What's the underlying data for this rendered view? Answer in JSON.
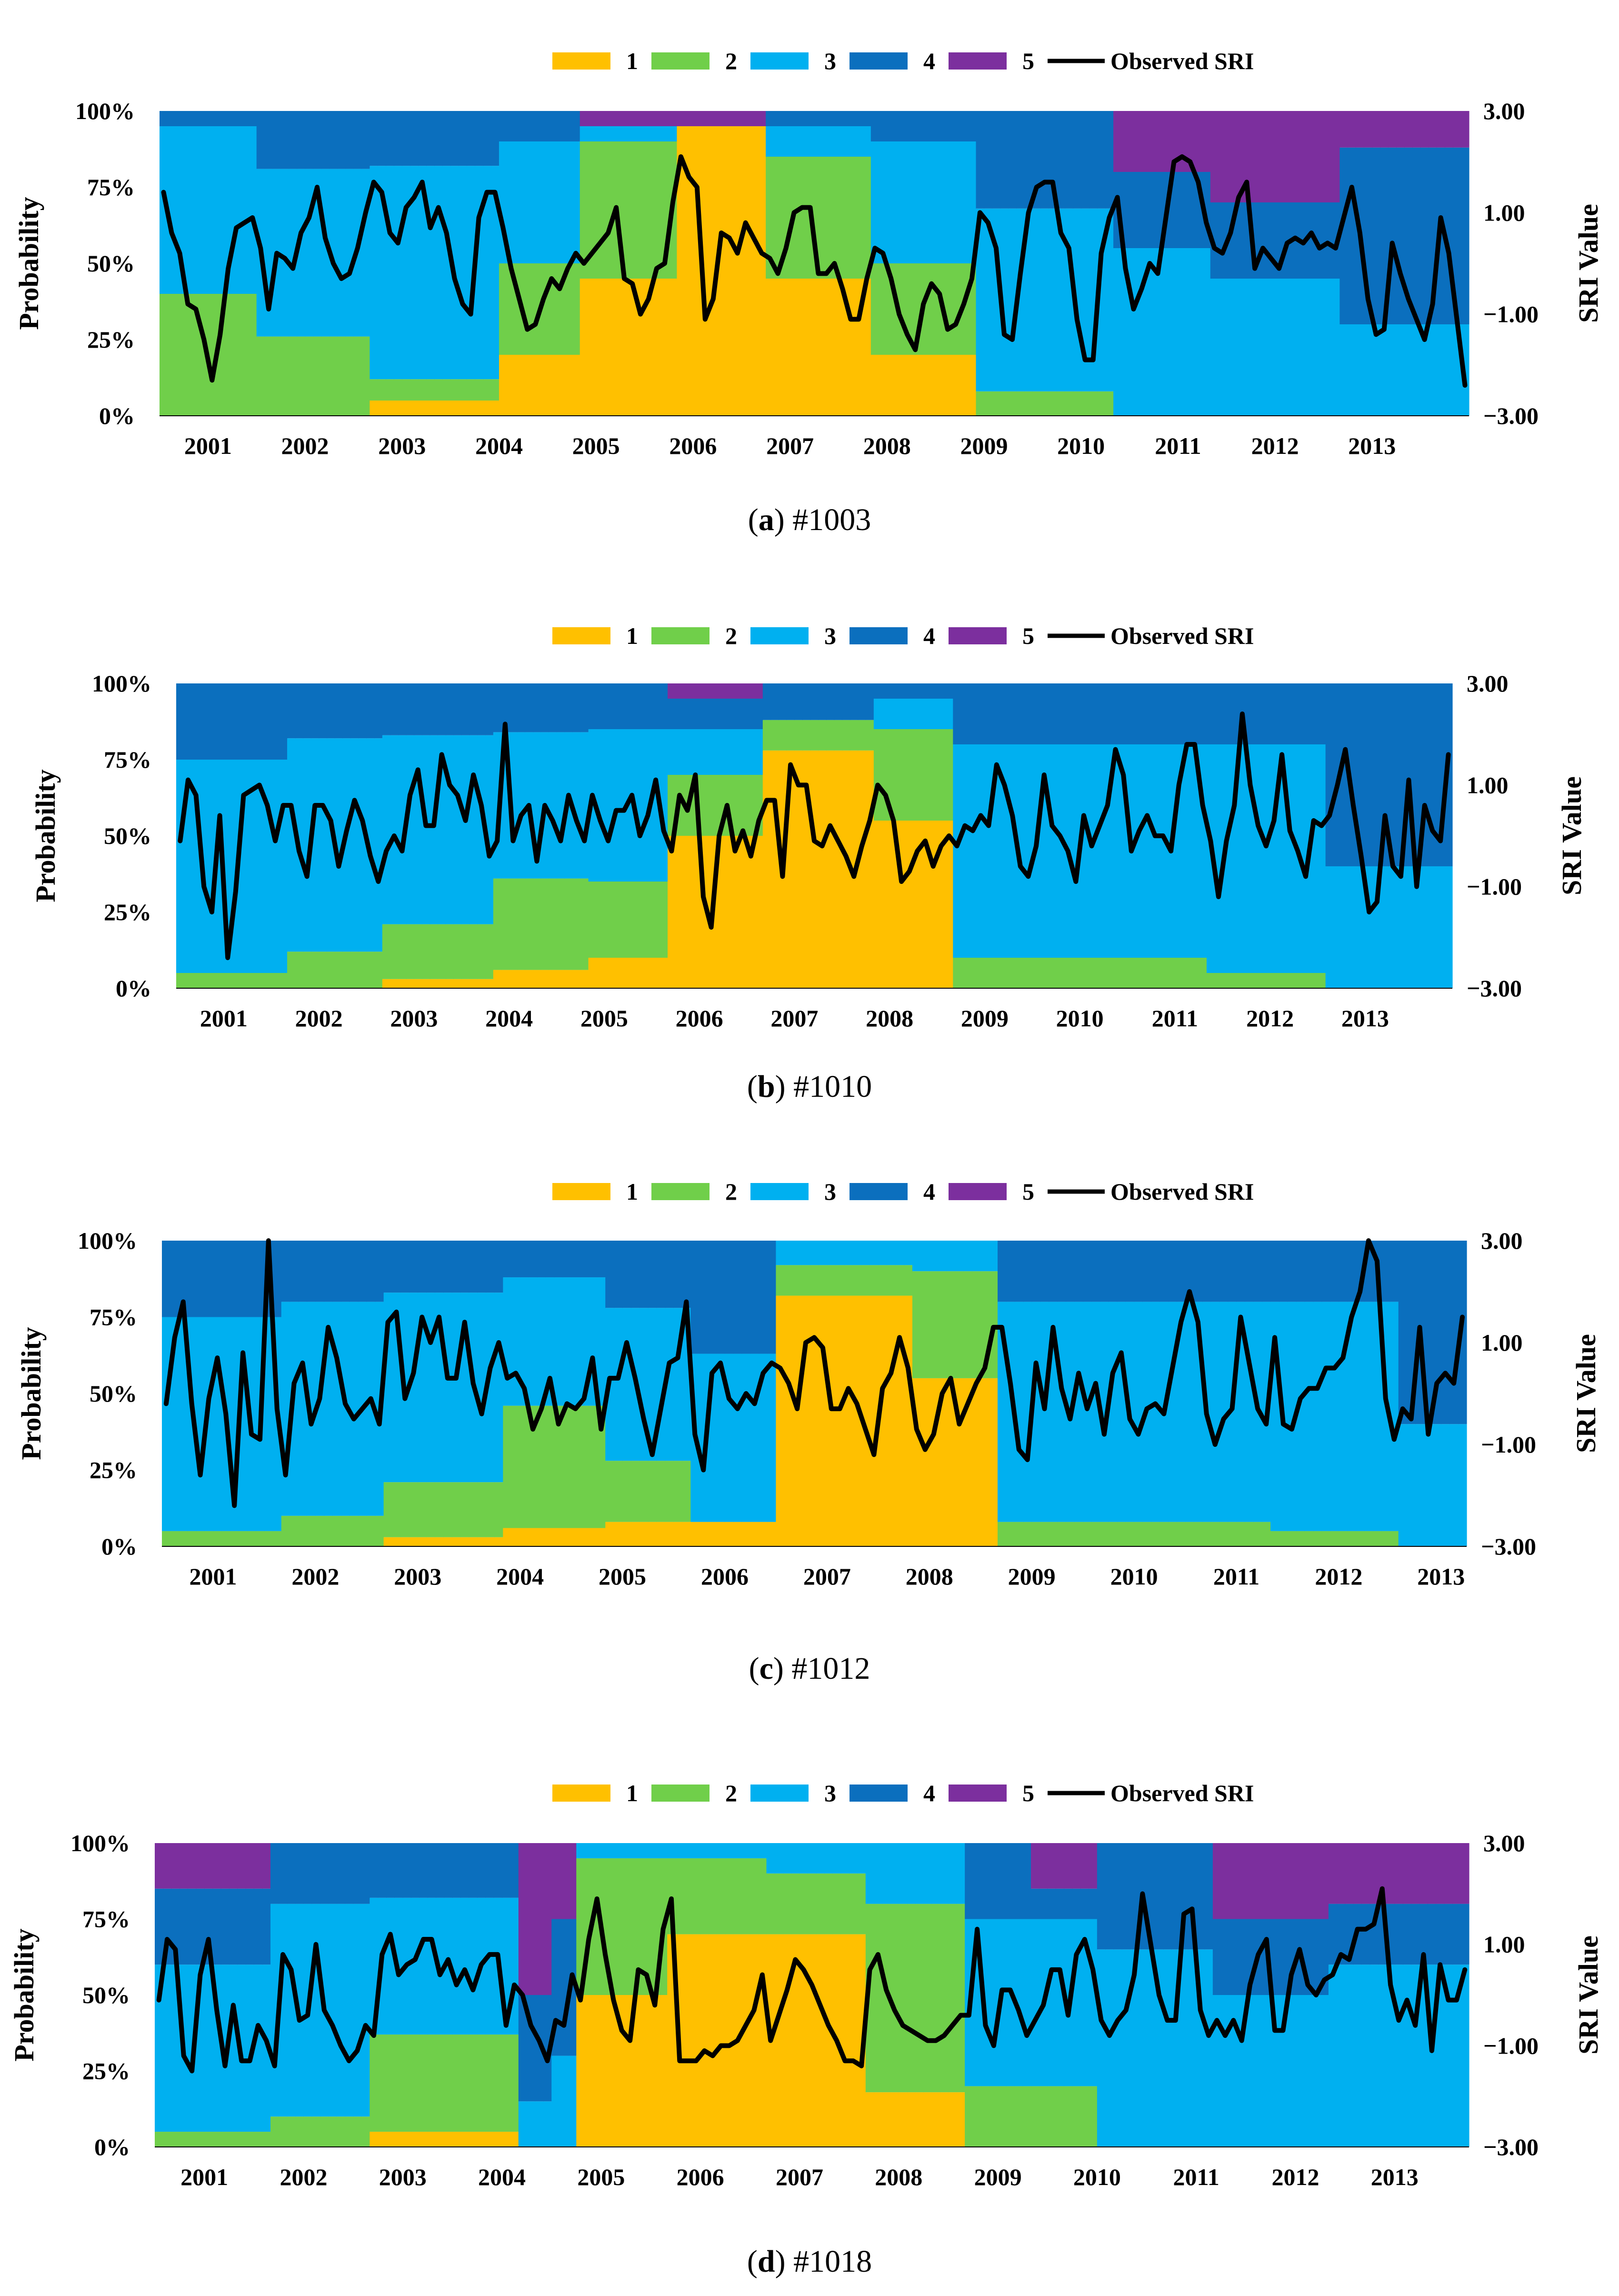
{
  "figure": {
    "legend": {
      "labels": [
        "1",
        "2",
        "3",
        "4",
        "5"
      ],
      "line_label": "Observed SRI"
    },
    "colors": {
      "1": "#FFC000",
      "2": "#70CF4A",
      "3": "#00B0F0",
      "4": "#0B6FBE",
      "5": "#7C2F9E",
      "line": "#000000"
    }
  },
  "chart_data": [
    {
      "type": "stacked-area-with-line",
      "panel_letter": "a",
      "caption": " #1003",
      "ylabel": "Probability",
      "y2label": "SRI Value",
      "yticks": [
        "0%",
        "25%",
        "50%",
        "75%",
        "100%"
      ],
      "y2ticks": [
        "−3.00",
        "−1.00",
        "1.00",
        "3.00"
      ],
      "y2lim": [
        -3,
        3
      ],
      "xticks": [
        "2001",
        "2002",
        "2003",
        "2004",
        "2005",
        "2006",
        "2007",
        "2008",
        "2009",
        "2010",
        "2011",
        "2012",
        "2013"
      ],
      "probability_segments": [
        {
          "start": 0,
          "p": [
            0,
            40,
            55,
            5,
            0
          ]
        },
        {
          "start": 12,
          "p": [
            0,
            26,
            55,
            19,
            0
          ]
        },
        {
          "start": 26,
          "p": [
            5,
            7,
            70,
            18,
            0
          ]
        },
        {
          "start": 42,
          "p": [
            20,
            30,
            40,
            10,
            0
          ]
        },
        {
          "start": 52,
          "p": [
            45,
            45,
            5,
            0,
            5
          ]
        },
        {
          "start": 64,
          "p": [
            95,
            0,
            0,
            0,
            5
          ]
        },
        {
          "start": 75,
          "p": [
            45,
            40,
            10,
            5,
            0
          ]
        },
        {
          "start": 88,
          "p": [
            20,
            30,
            40,
            10,
            0
          ]
        },
        {
          "start": 101,
          "p": [
            0,
            8,
            60,
            32,
            0
          ]
        },
        {
          "start": 118,
          "p": [
            0,
            0,
            55,
            25,
            20
          ]
        },
        {
          "start": 130,
          "p": [
            0,
            0,
            45,
            25,
            30
          ]
        },
        {
          "start": 146,
          "p": [
            0,
            0,
            30,
            58,
            12
          ]
        }
      ],
      "sri_values": [
        1.4,
        0.6,
        0.2,
        -0.8,
        -0.9,
        -1.5,
        -2.3,
        -1.4,
        -0.1,
        0.7,
        0.8,
        0.9,
        0.3,
        -0.9,
        0.2,
        0.1,
        -0.1,
        0.6,
        0.9,
        1.5,
        0.5,
        0.0,
        -0.3,
        -0.2,
        0.3,
        1.0,
        1.6,
        1.4,
        0.6,
        0.4,
        1.1,
        1.3,
        1.6,
        0.7,
        1.1,
        0.6,
        -0.3,
        -0.8,
        -1.0,
        0.9,
        1.4,
        1.4,
        0.7,
        -0.1,
        -0.7,
        -1.3,
        -1.2,
        -0.7,
        -0.3,
        -0.5,
        -0.1,
        0.2,
        0.0,
        0.2,
        0.4,
        0.6,
        1.1,
        -0.3,
        -0.4,
        -1.0,
        -0.7,
        -0.1,
        0.0,
        1.2,
        2.1,
        1.7,
        1.5,
        -1.1,
        -0.7,
        0.6,
        0.5,
        0.2,
        0.8,
        0.5,
        0.2,
        0.1,
        -0.2,
        0.3,
        1.0,
        1.1,
        1.1,
        -0.2,
        -0.2,
        0.0,
        -0.5,
        -1.1,
        -1.1,
        -0.3,
        0.3,
        0.2,
        -0.3,
        -1.0,
        -1.4,
        -1.7,
        -0.8,
        -0.4,
        -0.6,
        -1.3,
        -1.2,
        -0.8,
        -0.3,
        1.0,
        0.8,
        0.3,
        -1.4,
        -1.5,
        -0.2,
        1.0,
        1.5,
        1.6,
        1.6,
        0.6,
        0.3,
        -1.1,
        -1.9,
        -1.9,
        0.2,
        0.9,
        1.3,
        -0.1,
        -0.9,
        -0.5,
        0.0,
        -0.2,
        0.9,
        2.0,
        2.1,
        2.0,
        1.6,
        0.8,
        0.3,
        0.2,
        0.6,
        1.3,
        1.6,
        -0.1,
        0.3,
        0.1,
        -0.1,
        0.4,
        0.5,
        0.4,
        0.6,
        0.3,
        0.4,
        0.3,
        0.9,
        1.5,
        0.6,
        -0.7,
        -1.4,
        -1.3,
        0.4,
        -0.2,
        -0.7,
        -1.1,
        -1.5,
        -0.8,
        0.9,
        0.2,
        -1.1,
        -2.4
      ]
    },
    {
      "type": "stacked-area-with-line",
      "panel_letter": "b",
      "caption": " #1010",
      "ylabel": "Probability",
      "y2label": "SRI Value",
      "yticks": [
        "0%",
        "25%",
        "50%",
        "75%",
        "100%"
      ],
      "y2ticks": [
        "−3.00",
        "−1.00",
        "1.00",
        "3.00"
      ],
      "y2lim": [
        -3,
        3
      ],
      "xticks": [
        "2001",
        "2002",
        "2003",
        "2004",
        "2005",
        "2006",
        "2007",
        "2008",
        "2009",
        "2010",
        "2011",
        "2012",
        "2013"
      ],
      "probability_segments": [
        {
          "start": 0,
          "p": [
            0,
            5,
            70,
            25,
            0
          ]
        },
        {
          "start": 14,
          "p": [
            0,
            12,
            70,
            18,
            0
          ]
        },
        {
          "start": 26,
          "p": [
            3,
            18,
            62,
            17,
            0
          ]
        },
        {
          "start": 40,
          "p": [
            6,
            30,
            48,
            16,
            0
          ]
        },
        {
          "start": 52,
          "p": [
            10,
            25,
            50,
            15,
            0
          ]
        },
        {
          "start": 62,
          "p": [
            50,
            20,
            15,
            10,
            5
          ]
        },
        {
          "start": 74,
          "p": [
            78,
            10,
            0,
            12,
            0
          ]
        },
        {
          "start": 88,
          "p": [
            55,
            30,
            10,
            5,
            0
          ]
        },
        {
          "start": 98,
          "p": [
            0,
            10,
            70,
            20,
            0
          ]
        },
        {
          "start": 130,
          "p": [
            0,
            5,
            75,
            20,
            0
          ]
        },
        {
          "start": 145,
          "p": [
            0,
            0,
            40,
            60,
            0
          ]
        }
      ],
      "sri_values": [
        -0.1,
        1.1,
        0.8,
        -1.0,
        -1.5,
        0.4,
        -2.4,
        -1.1,
        0.8,
        0.9,
        1.0,
        0.6,
        -0.1,
        0.6,
        0.6,
        -0.3,
        -0.8,
        0.6,
        0.6,
        0.3,
        -0.6,
        0.1,
        0.7,
        0.3,
        -0.4,
        -0.9,
        -0.3,
        0.0,
        -0.3,
        0.8,
        1.3,
        0.2,
        0.2,
        1.6,
        1.0,
        0.8,
        0.3,
        1.2,
        0.6,
        -0.4,
        -0.1,
        2.2,
        -0.1,
        0.4,
        0.6,
        -0.5,
        0.6,
        0.3,
        -0.1,
        0.8,
        0.3,
        -0.1,
        0.8,
        0.3,
        -0.1,
        0.5,
        0.5,
        0.8,
        0.0,
        0.4,
        1.1,
        0.1,
        -0.3,
        0.8,
        0.5,
        1.2,
        -1.2,
        -1.8,
        0.0,
        0.6,
        -0.3,
        0.1,
        -0.4,
        0.3,
        0.7,
        0.7,
        -0.8,
        1.4,
        1.0,
        1.0,
        -0.1,
        -0.2,
        0.2,
        -0.1,
        -0.4,
        -0.8,
        -0.2,
        0.3,
        1.0,
        0.8,
        0.3,
        -0.9,
        -0.7,
        -0.3,
        -0.1,
        -0.6,
        -0.2,
        0.0,
        -0.2,
        0.2,
        0.1,
        0.4,
        0.2,
        1.4,
        1.0,
        0.4,
        -0.6,
        -0.8,
        -0.2,
        1.2,
        0.2,
        0.0,
        -0.3,
        -0.9,
        0.4,
        -0.2,
        0.2,
        0.6,
        1.7,
        1.2,
        -0.3,
        0.1,
        0.4,
        0.0,
        0.0,
        -0.3,
        1.0,
        1.8,
        1.8,
        0.6,
        -0.1,
        -1.2,
        -0.1,
        0.6,
        2.4,
        1.0,
        0.2,
        -0.2,
        0.3,
        1.6,
        0.1,
        -0.3,
        -0.8,
        0.3,
        0.2,
        0.4,
        1.0,
        1.7,
        0.6,
        -0.4,
        -1.5,
        -1.3,
        0.4,
        -0.6,
        -0.8,
        1.1,
        -1.0,
        0.6,
        0.1,
        -0.1,
        1.6
      ]
    },
    {
      "type": "stacked-area-with-line",
      "panel_letter": "c",
      "caption": " #1012",
      "ylabel": "Probability",
      "y2label": "SRI Value",
      "yticks": [
        "0%",
        "25%",
        "50%",
        "75%",
        "100%"
      ],
      "y2ticks": [
        "−3.00",
        "−1.00",
        "1.00",
        "3.00"
      ],
      "y2lim": [
        -3,
        3
      ],
      "xticks": [
        "2001",
        "2002",
        "2003",
        "2004",
        "2005",
        "2006",
        "2007",
        "2008",
        "2009",
        "2010",
        "2011",
        "2012",
        "2013"
      ],
      "probability_segments": [
        {
          "start": 0,
          "p": [
            0,
            5,
            70,
            25,
            0
          ]
        },
        {
          "start": 14,
          "p": [
            0,
            10,
            70,
            20,
            0
          ]
        },
        {
          "start": 26,
          "p": [
            3,
            18,
            62,
            17,
            0
          ]
        },
        {
          "start": 40,
          "p": [
            6,
            40,
            42,
            12,
            0
          ]
        },
        {
          "start": 52,
          "p": [
            8,
            20,
            50,
            22,
            0
          ]
        },
        {
          "start": 62,
          "p": [
            8,
            0,
            55,
            37,
            0
          ]
        },
        {
          "start": 72,
          "p": [
            82,
            10,
            8,
            0,
            0
          ]
        },
        {
          "start": 88,
          "p": [
            55,
            35,
            10,
            0,
            0
          ]
        },
        {
          "start": 98,
          "p": [
            0,
            8,
            72,
            20,
            0
          ]
        },
        {
          "start": 130,
          "p": [
            0,
            5,
            75,
            20,
            0
          ]
        },
        {
          "start": 145,
          "p": [
            0,
            0,
            40,
            60,
            0
          ]
        }
      ],
      "sri_values": [
        -0.2,
        1.1,
        1.8,
        -0.2,
        -1.6,
        -0.1,
        0.7,
        -0.4,
        -2.2,
        0.8,
        -0.8,
        -0.9,
        3.0,
        -0.3,
        -1.6,
        0.2,
        0.6,
        -0.6,
        -0.1,
        1.3,
        0.7,
        -0.2,
        -0.5,
        -0.3,
        -0.1,
        -0.6,
        1.4,
        1.6,
        -0.1,
        0.4,
        1.5,
        1.0,
        1.5,
        0.3,
        0.3,
        1.4,
        0.2,
        -0.4,
        0.5,
        1.0,
        0.3,
        0.4,
        0.1,
        -0.7,
        -0.3,
        0.3,
        -0.6,
        -0.2,
        -0.3,
        -0.1,
        0.7,
        -0.7,
        0.3,
        0.3,
        1.0,
        0.3,
        -0.5,
        -1.2,
        -0.3,
        0.6,
        0.7,
        1.8,
        -0.8,
        -1.5,
        0.4,
        0.6,
        -0.1,
        -0.3,
        0.0,
        -0.2,
        0.4,
        0.6,
        0.5,
        0.2,
        -0.3,
        1.0,
        1.1,
        0.9,
        -0.3,
        -0.3,
        0.1,
        -0.2,
        -0.7,
        -1.2,
        0.1,
        0.4,
        1.1,
        0.5,
        -0.7,
        -1.1,
        -0.8,
        0.0,
        0.3,
        -0.6,
        -0.2,
        0.2,
        0.5,
        1.3,
        1.3,
        0.2,
        -1.1,
        -1.3,
        0.6,
        -0.3,
        1.3,
        0.1,
        -0.5,
        0.4,
        -0.3,
        0.2,
        -0.8,
        0.4,
        0.8,
        -0.5,
        -0.8,
        -0.3,
        -0.2,
        -0.4,
        0.5,
        1.4,
        2.0,
        1.4,
        -0.4,
        -1.0,
        -0.5,
        -0.3,
        1.5,
        0.6,
        -0.3,
        -0.6,
        1.1,
        -0.6,
        -0.7,
        -0.1,
        0.1,
        0.1,
        0.5,
        0.5,
        0.7,
        1.5,
        2.0,
        3.0,
        2.6,
        -0.1,
        -0.9,
        -0.3,
        -0.5,
        1.3,
        -0.8,
        0.2,
        0.4,
        0.2,
        1.5
      ]
    },
    {
      "type": "stacked-area-with-line",
      "panel_letter": "d",
      "caption": " #1018",
      "ylabel": "Probability",
      "y2label": "SRI Value",
      "yticks": [
        "0%",
        "25%",
        "50%",
        "75%",
        "100%"
      ],
      "y2ticks": [
        "−3.00",
        "−1.00",
        "1.00",
        "3.00"
      ],
      "y2lim": [
        -3,
        3
      ],
      "xticks": [
        "2001",
        "2002",
        "2003",
        "2004",
        "2005",
        "2006",
        "2007",
        "2008",
        "2009",
        "2010",
        "2011",
        "2012",
        "2013"
      ],
      "probability_segments": [
        {
          "start": 0,
          "p": [
            0,
            5,
            55,
            25,
            15
          ]
        },
        {
          "start": 14,
          "p": [
            0,
            10,
            70,
            20,
            0
          ]
        },
        {
          "start": 26,
          "p": [
            5,
            32,
            45,
            18,
            0
          ]
        },
        {
          "start": 44,
          "p": [
            0,
            0,
            15,
            35,
            50
          ]
        },
        {
          "start": 48,
          "p": [
            0,
            0,
            30,
            45,
            25
          ]
        },
        {
          "start": 51,
          "p": [
            50,
            45,
            5,
            0,
            0
          ]
        },
        {
          "start": 62,
          "p": [
            70,
            25,
            5,
            0,
            0
          ]
        },
        {
          "start": 74,
          "p": [
            70,
            20,
            10,
            0,
            0
          ]
        },
        {
          "start": 86,
          "p": [
            18,
            62,
            20,
            0,
            0
          ]
        },
        {
          "start": 98,
          "p": [
            0,
            20,
            55,
            25,
            0
          ]
        },
        {
          "start": 106,
          "p": [
            0,
            20,
            55,
            10,
            15
          ]
        },
        {
          "start": 114,
          "p": [
            0,
            0,
            65,
            35,
            0
          ]
        },
        {
          "start": 128,
          "p": [
            0,
            0,
            50,
            25,
            25
          ]
        },
        {
          "start": 142,
          "p": [
            0,
            0,
            60,
            20,
            20
          ]
        }
      ],
      "sri_values": [
        -0.1,
        1.1,
        0.9,
        -1.2,
        -1.5,
        0.4,
        1.1,
        -0.3,
        -1.4,
        -0.2,
        -1.3,
        -1.3,
        -0.6,
        -0.9,
        -1.4,
        0.8,
        0.5,
        -0.5,
        -0.4,
        1.0,
        -0.3,
        -0.6,
        -1.0,
        -1.3,
        -1.1,
        -0.6,
        -0.8,
        0.8,
        1.2,
        0.4,
        0.6,
        0.7,
        1.1,
        1.1,
        0.4,
        0.7,
        0.2,
        0.5,
        0.1,
        0.6,
        0.8,
        0.8,
        -0.6,
        0.2,
        0.0,
        -0.6,
        -0.9,
        -1.3,
        -0.5,
        -0.6,
        0.4,
        -0.1,
        1.1,
        1.9,
        0.8,
        -0.1,
        -0.7,
        -0.9,
        0.5,
        0.4,
        -0.2,
        1.3,
        1.9,
        -1.3,
        -1.3,
        -1.3,
        -1.1,
        -1.2,
        -1.0,
        -1.0,
        -0.9,
        -0.6,
        -0.3,
        0.4,
        -0.9,
        -0.4,
        0.1,
        0.7,
        0.5,
        0.2,
        -0.2,
        -0.6,
        -0.9,
        -1.3,
        -1.3,
        -1.4,
        0.5,
        0.8,
        0.1,
        -0.3,
        -0.6,
        -0.7,
        -0.8,
        -0.9,
        -0.9,
        -0.8,
        -0.6,
        -0.4,
        -0.4,
        1.3,
        -0.6,
        -1.0,
        0.1,
        0.1,
        -0.3,
        -0.8,
        -0.5,
        -0.2,
        0.5,
        0.5,
        -0.4,
        0.8,
        1.1,
        0.5,
        -0.5,
        -0.8,
        -0.5,
        -0.3,
        0.4,
        2.0,
        1.0,
        0.0,
        -0.5,
        -0.5,
        1.6,
        1.7,
        -0.3,
        -0.8,
        -0.5,
        -0.8,
        -0.5,
        -0.9,
        0.2,
        0.8,
        1.1,
        -0.7,
        -0.7,
        0.4,
        0.9,
        0.2,
        0.0,
        0.3,
        0.4,
        0.8,
        0.7,
        1.3,
        1.3,
        1.4,
        2.1,
        0.2,
        -0.5,
        -0.1,
        -0.6,
        0.8,
        -1.1,
        0.6,
        -0.1,
        -0.1,
        0.5
      ]
    }
  ]
}
